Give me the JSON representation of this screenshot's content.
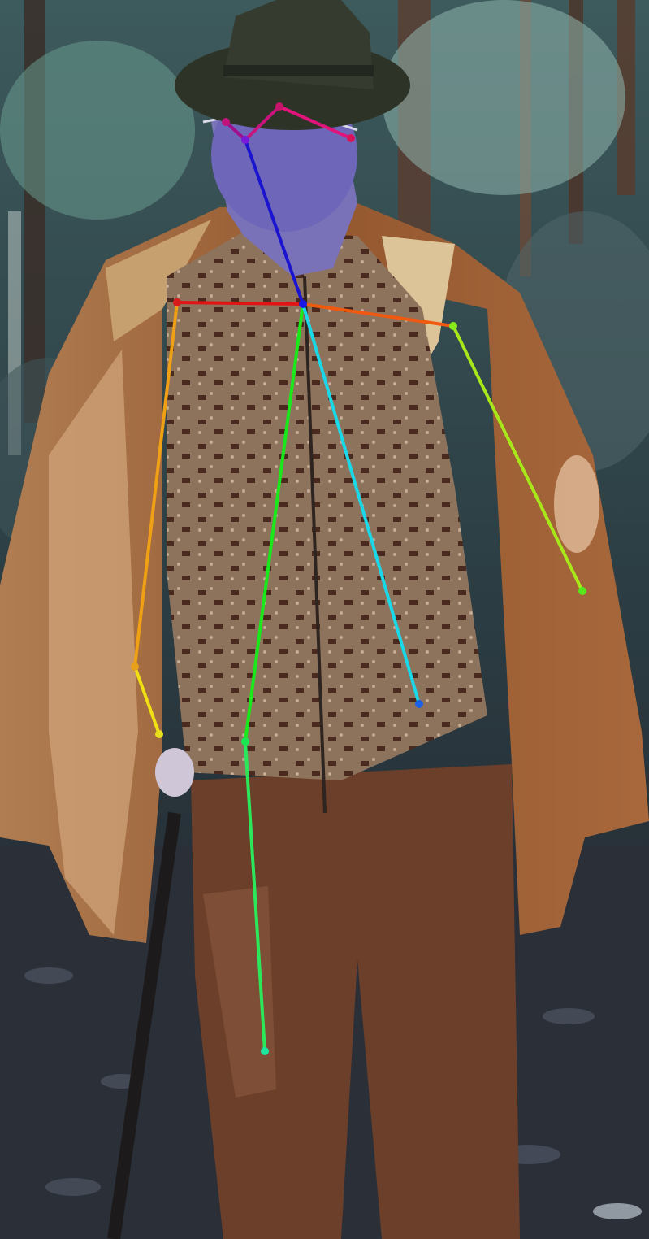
{
  "scene": {
    "description_kind": "photo with pose skeleton overlay",
    "colors": {
      "forest_dark": "#22303a",
      "forest_light": "#6f8e92",
      "ground": "#2a2f36",
      "jacket": "#9a6238",
      "jacket_light": "#c99a6e",
      "sweater": "#8a6a52",
      "trousers": "#6b3f2a",
      "hat": "#2d3327",
      "face": "#6e66b8"
    }
  },
  "skeleton": {
    "keypoints": [
      {
        "id": "nose",
        "color": "#7a1ad9"
      },
      {
        "id": "left-eye",
        "color": "#c0147c"
      },
      {
        "id": "right-eye",
        "color": "#c8146a"
      },
      {
        "id": "right-ear",
        "color": "#d9145a"
      },
      {
        "id": "neck",
        "color": "#1a1ae6"
      },
      {
        "id": "right-shoulder",
        "color": "#d91a1a"
      },
      {
        "id": "right-elbow",
        "color": "#e8a01a"
      },
      {
        "id": "right-wrist",
        "color": "#e8e01a"
      },
      {
        "id": "left-shoulder",
        "color": "#88e81a"
      },
      {
        "id": "left-elbow",
        "color": "#54e81a"
      },
      {
        "id": "right-hip",
        "color": "#1ae850"
      },
      {
        "id": "right-knee",
        "color": "#1ae8a0"
      },
      {
        "id": "left-hip",
        "color": "#1a60e8"
      }
    ],
    "limbs": [
      {
        "id": "nose-left-eye",
        "color": "#a0108c"
      },
      {
        "id": "left-eye-right-eye",
        "color": "#c8147c"
      },
      {
        "id": "right-eye-right-ear",
        "color": "#e0147a"
      },
      {
        "id": "nose-neck",
        "color": "#1a14d0"
      },
      {
        "id": "neck-right-shoulder",
        "color": "#e01414"
      },
      {
        "id": "right-shoulder-right-elbow",
        "color": "#f0a014"
      },
      {
        "id": "right-elbow-right-wrist",
        "color": "#f0e014"
      },
      {
        "id": "neck-left-shoulder",
        "color": "#f05a10"
      },
      {
        "id": "left-shoulder-left-elbow",
        "color": "#a8e81a"
      },
      {
        "id": "neck-right-hip",
        "color": "#1ae81a"
      },
      {
        "id": "right-hip-right-knee",
        "color": "#2ae85a"
      },
      {
        "id": "neck-left-hip",
        "color": "#1ad8e8"
      }
    ]
  }
}
